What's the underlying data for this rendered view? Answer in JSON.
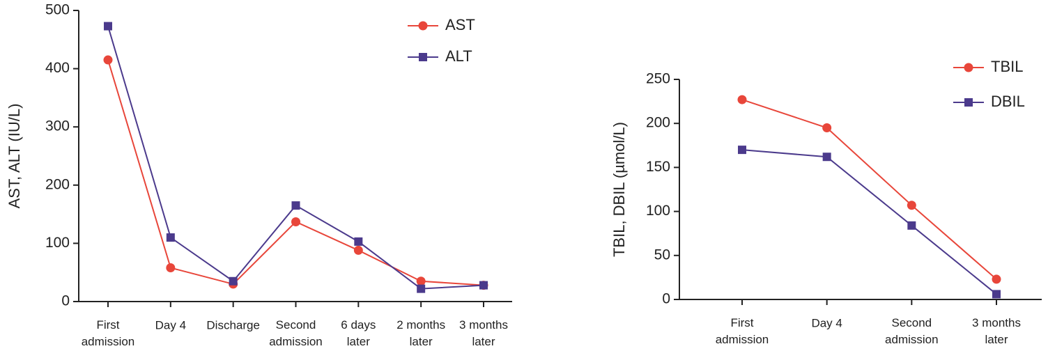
{
  "chart_data": [
    {
      "type": "line",
      "ylabel": "AST, ALT (IU/L)",
      "categories": [
        "First admission",
        "Day 4",
        "Discharge",
        "Second admission",
        "6 days later",
        "2 months later",
        "3 months later"
      ],
      "series": [
        {
          "name": "AST",
          "color": "#e8463a",
          "marker": "circle",
          "values": [
            415,
            58,
            30,
            137,
            88,
            35,
            28
          ]
        },
        {
          "name": "ALT",
          "color": "#4b3a8c",
          "marker": "square",
          "values": [
            473,
            110,
            35,
            165,
            103,
            22,
            28
          ]
        }
      ],
      "ylim": [
        0,
        500
      ],
      "yticks": [
        0,
        100,
        200,
        300,
        400,
        500
      ]
    },
    {
      "type": "line",
      "ylabel": "TBIL, DBIL (µmol/L)",
      "categories": [
        "First admission",
        "Day 4",
        "Second admission",
        "3 months later"
      ],
      "series": [
        {
          "name": "TBIL",
          "color": "#e8463a",
          "marker": "circle",
          "values": [
            227,
            195,
            107,
            23
          ]
        },
        {
          "name": "DBIL",
          "color": "#4b3a8c",
          "marker": "square",
          "values": [
            170,
            162,
            84,
            6
          ]
        }
      ],
      "ylim": [
        0,
        250
      ],
      "yticks": [
        0,
        50,
        100,
        150,
        200,
        250
      ]
    }
  ]
}
